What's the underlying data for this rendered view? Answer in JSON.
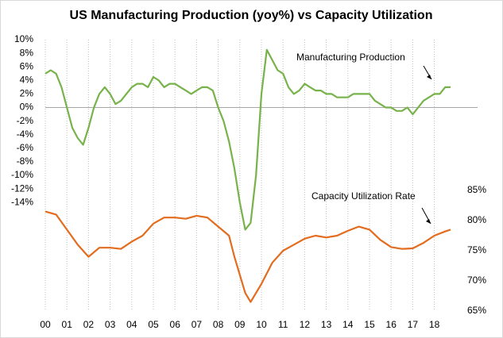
{
  "chart_data": {
    "type": "line",
    "title": "US Manufacturing Production (yoy%) vs Capacity Utilization",
    "annotations": [
      "Manufacturing Production",
      "Capacity Utilization Rate"
    ],
    "xlim": [
      2000,
      2020
    ],
    "xticks": [
      {
        "value": 2000,
        "label": "00"
      },
      {
        "value": 2001,
        "label": "01"
      },
      {
        "value": 2002,
        "label": "02"
      },
      {
        "value": 2003,
        "label": "03"
      },
      {
        "value": 2004,
        "label": "04"
      },
      {
        "value": 2005,
        "label": "05"
      },
      {
        "value": 2006,
        "label": "06"
      },
      {
        "value": 2007,
        "label": "07"
      },
      {
        "value": 2008,
        "label": "08"
      },
      {
        "value": 2009,
        "label": "09"
      },
      {
        "value": 2010,
        "label": "10"
      },
      {
        "value": 2011,
        "label": "11"
      },
      {
        "value": 2012,
        "label": "12"
      },
      {
        "value": 2013,
        "label": "13"
      },
      {
        "value": 2014,
        "label": "14"
      },
      {
        "value": 2015,
        "label": "15"
      },
      {
        "value": 2016,
        "label": "16"
      },
      {
        "value": 2017,
        "label": "17"
      },
      {
        "value": 2018,
        "label": "18"
      }
    ],
    "ylim": [
      -30,
      10
    ],
    "yticks": [
      {
        "value": 10,
        "label": "10%"
      },
      {
        "value": 8,
        "label": "8%"
      },
      {
        "value": 6,
        "label": "6%"
      },
      {
        "value": 4,
        "label": "4%"
      },
      {
        "value": 2,
        "label": "2%"
      },
      {
        "value": 0,
        "label": "0%"
      },
      {
        "value": -2,
        "label": "-2%"
      },
      {
        "value": -4,
        "label": "-4%"
      },
      {
        "value": -6,
        "label": "-6%"
      },
      {
        "value": -8,
        "label": "-8%"
      },
      {
        "value": -10,
        "label": "-10%"
      },
      {
        "value": -12,
        "label": "-12%"
      },
      {
        "value": -14,
        "label": "-14%"
      }
    ],
    "y2lim": [
      65,
      110
    ],
    "y2ticks": [
      {
        "value": 85,
        "label": "85%"
      },
      {
        "value": 80,
        "label": "80%"
      },
      {
        "value": 75,
        "label": "75%"
      },
      {
        "value": 70,
        "label": "70%"
      },
      {
        "value": 65,
        "label": "65%"
      }
    ],
    "grid": true,
    "series": [
      {
        "name": "Manufacturing Production",
        "color": "#77b34a",
        "x": [
          2000,
          2000.25,
          2000.5,
          2000.75,
          2001,
          2001.25,
          2001.5,
          2001.75,
          2002,
          2002.25,
          2002.5,
          2002.75,
          2003,
          2003.25,
          2003.5,
          2003.75,
          2004,
          2004.25,
          2004.5,
          2004.75,
          2005,
          2005.25,
          2005.5,
          2005.75,
          2006,
          2006.25,
          2006.5,
          2006.75,
          2007,
          2007.25,
          2007.5,
          2007.75,
          2008,
          2008.25,
          2008.5,
          2008.75,
          2009,
          2009.25,
          2009.5,
          2009.75,
          2010,
          2010.25,
          2010.5,
          2010.75,
          2011,
          2011.25,
          2011.5,
          2011.75,
          2012,
          2012.25,
          2012.5,
          2012.75,
          2013,
          2013.25,
          2013.5,
          2013.75,
          2014,
          2014.25,
          2014.5,
          2014.75,
          2015,
          2015.25,
          2015.5,
          2015.75,
          2016,
          2016.25,
          2016.5,
          2016.75,
          2017,
          2017.25,
          2017.5,
          2017.75,
          2018,
          2018.25,
          2018.5,
          2018.75
        ],
        "values": [
          5,
          5.5,
          5,
          3,
          0,
          -3,
          -4.5,
          -5.5,
          -3,
          0,
          2,
          3,
          2,
          0.5,
          1,
          2,
          3,
          3.5,
          3.5,
          3,
          4.5,
          4,
          3,
          3.5,
          3.5,
          3,
          2.5,
          2,
          2.5,
          3,
          3,
          2.5,
          0,
          -2,
          -5,
          -9,
          -14,
          -18,
          -17,
          -10,
          2,
          8.5,
          7,
          5.5,
          5,
          3,
          2,
          2.5,
          3.5,
          3,
          2.5,
          2.5,
          2,
          2,
          1.5,
          1.5,
          1.5,
          2,
          2,
          2,
          2,
          1,
          0.5,
          0,
          0,
          -0.5,
          -0.5,
          0,
          -1,
          0,
          1,
          1.5,
          2,
          2,
          3,
          3
        ]
      },
      {
        "name": "Capacity Utilization Rate",
        "color": "#e36c1e",
        "axis": "y2",
        "x": [
          2000,
          2000.5,
          2001,
          2001.5,
          2002,
          2002.5,
          2003,
          2003.5,
          2004,
          2004.5,
          2005,
          2005.5,
          2006,
          2006.5,
          2007,
          2007.5,
          2008,
          2008.5,
          2008.75,
          2009.25,
          2009.5,
          2010,
          2010.5,
          2011,
          2011.5,
          2012,
          2012.5,
          2013,
          2013.5,
          2014,
          2014.5,
          2015,
          2015.5,
          2016,
          2016.5,
          2017,
          2017.5,
          2018,
          2018.5,
          2018.75
        ],
        "values": [
          81.5,
          81,
          78.5,
          76,
          74,
          75.5,
          75.5,
          75.3,
          76.5,
          77.5,
          79.5,
          80.5,
          80.5,
          80.3,
          80.8,
          80.5,
          79,
          77.5,
          74,
          68,
          66.5,
          69.5,
          73,
          75,
          76,
          77,
          77.5,
          77.2,
          77.5,
          78.3,
          79,
          78.5,
          76.8,
          75.6,
          75.3,
          75.4,
          76.3,
          77.5,
          78.2,
          78.5
        ]
      }
    ]
  }
}
